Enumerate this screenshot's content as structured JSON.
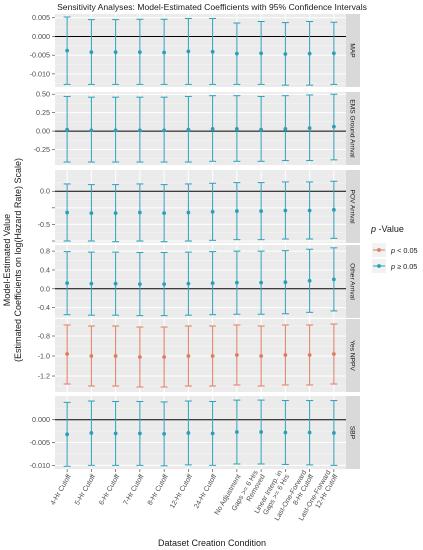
{
  "chart_data": {
    "type": "scatter",
    "title": "Sensitivity Analyses: Model-Estimated Coefficients with 95% Confidence Intervals",
    "xlabel": "Dataset Creation Condition",
    "ylabel_line1": "Model-Estimated Value",
    "ylabel_line2": "(Estimated Coefficients on log(Hazard Rate) Scale)",
    "categories": [
      [
        "4-Hr Cutoff"
      ],
      [
        "5-Hr Cutoff"
      ],
      [
        "6-Hr Cutoff"
      ],
      [
        "7-Hr Cutoff"
      ],
      [
        "8-Hr Cutoff"
      ],
      [
        "12-Hr Cutoff"
      ],
      [
        "24-Hr Cutoff"
      ],
      [
        "No Adjustment"
      ],
      [
        "Gaps >= 6 Hrs",
        "Removed"
      ],
      [
        "Linear Interp. in",
        "Gaps >= 6 Hrs"
      ],
      [
        "Last-One-Forward",
        "8-Hr Cutoff"
      ],
      [
        "Last-One-Forward",
        "12-Hr Cutoff"
      ]
    ],
    "legend": {
      "title_italic": "p",
      "title_rest": " -Value",
      "placement": "right",
      "entries": [
        {
          "italic": "p",
          "rest": " < 0.05",
          "color": "#e07b61"
        },
        {
          "italic": "p",
          "rest": " ≥ 0.05",
          "color": "#2aa0b8"
        }
      ]
    },
    "colors": {
      "significant": "#e07b61",
      "nonsignificant": "#2aa0b8",
      "panel_bg": "#ebebeb",
      "strip_bg": "#d9d9d9"
    },
    "panels": [
      {
        "strip": "MAP",
        "ylim": [
          -0.0135,
          0.006
        ],
        "ticks": [
          0.005,
          0.0,
          -0.005,
          -0.01
        ],
        "tick_labels": [
          "0.005",
          "0.000",
          "-0.005",
          "-0.010"
        ],
        "significant": false,
        "estimate": [
          -0.0038,
          -0.0042,
          -0.0042,
          -0.0042,
          -0.0043,
          -0.004,
          -0.0041,
          -0.0046,
          -0.0045,
          -0.0047,
          -0.0046,
          -0.0045
        ],
        "lower": [
          -0.0128,
          -0.0128,
          -0.0128,
          -0.0128,
          -0.0128,
          -0.0128,
          -0.0128,
          -0.0128,
          -0.0128,
          -0.013,
          -0.013,
          -0.0128
        ],
        "upper": [
          0.0052,
          0.0045,
          0.0045,
          0.0046,
          0.0046,
          0.0048,
          0.0048,
          0.0036,
          0.004,
          0.0037,
          0.004,
          0.0038
        ]
      },
      {
        "strip": "EMS Ground Arrival",
        "ylim": [
          -0.46,
          0.53
        ],
        "ticks": [
          0.5,
          0.25,
          0.0,
          -0.25
        ],
        "tick_labels": [
          "0.50",
          "0.25",
          "0.00",
          "-0.25"
        ],
        "significant": false,
        "estimate": [
          0.02,
          0.01,
          0.01,
          0.01,
          0.01,
          0.02,
          0.03,
          0.03,
          0.02,
          0.03,
          0.04,
          0.06
        ],
        "lower": [
          -0.42,
          -0.42,
          -0.42,
          -0.42,
          -0.42,
          -0.42,
          -0.41,
          -0.41,
          -0.41,
          -0.4,
          -0.4,
          -0.39
        ],
        "upper": [
          0.47,
          0.46,
          0.46,
          0.46,
          0.46,
          0.47,
          0.48,
          0.48,
          0.47,
          0.48,
          0.49,
          0.5
        ]
      },
      {
        "strip": "POV Arrival",
        "ylim": [
          -0.78,
          0.32
        ],
        "ticks": [
          0.0,
          -0.25,
          -0.5,
          -0.75
        ],
        "tick_labels": [
          "0.0",
          "",
          "-0.5",
          ""
        ],
        "significant": false,
        "estimate": [
          -0.32,
          -0.33,
          -0.33,
          -0.32,
          -0.33,
          -0.32,
          -0.31,
          -0.3,
          -0.3,
          -0.29,
          -0.29,
          -0.28
        ],
        "lower": [
          -0.75,
          -0.75,
          -0.76,
          -0.75,
          -0.76,
          -0.75,
          -0.74,
          -0.73,
          -0.73,
          -0.72,
          -0.72,
          -0.71
        ],
        "upper": [
          0.11,
          0.1,
          0.1,
          0.11,
          0.1,
          0.11,
          0.12,
          0.13,
          0.13,
          0.14,
          0.14,
          0.15
        ]
      },
      {
        "strip": "Other Arrival",
        "ylim": [
          -0.62,
          0.93
        ],
        "ticks": [
          0.8,
          0.4,
          0.0,
          -0.4
        ],
        "tick_labels": [
          "0.8",
          "0.4",
          "0.0",
          "-0.4"
        ],
        "significant": false,
        "estimate": [
          0.12,
          0.11,
          0.11,
          0.1,
          0.1,
          0.11,
          0.12,
          0.13,
          0.13,
          0.14,
          0.17,
          0.2
        ],
        "lower": [
          -0.55,
          -0.56,
          -0.56,
          -0.57,
          -0.57,
          -0.56,
          -0.55,
          -0.54,
          -0.54,
          -0.53,
          -0.5,
          -0.47
        ],
        "upper": [
          0.79,
          0.78,
          0.78,
          0.77,
          0.77,
          0.78,
          0.79,
          0.8,
          0.8,
          0.81,
          0.84,
          0.87
        ]
      },
      {
        "strip": "Yes NPPV",
        "ylim": [
          -1.36,
          -0.63
        ],
        "ticks": [
          -0.8,
          -1.0,
          -1.2
        ],
        "tick_labels": [
          "-0.8",
          "-1.0",
          "-1.2"
        ],
        "significant": true,
        "estimate": [
          -0.98,
          -1.0,
          -1.0,
          -1.01,
          -1.01,
          -1.0,
          -1.0,
          -0.99,
          -1.0,
          -0.99,
          -0.99,
          -0.98
        ],
        "lower": [
          -1.28,
          -1.3,
          -1.3,
          -1.31,
          -1.31,
          -1.3,
          -1.3,
          -1.29,
          -1.3,
          -1.29,
          -1.29,
          -1.28
        ],
        "upper": [
          -0.69,
          -0.7,
          -0.7,
          -0.71,
          -0.71,
          -0.7,
          -0.7,
          -0.69,
          -0.7,
          -0.69,
          -0.69,
          -0.68
        ]
      },
      {
        "strip": "SBP",
        "ylim": [
          -0.0108,
          0.0052
        ],
        "ticks": [
          0.0,
          -0.005,
          -0.01
        ],
        "tick_labels": [
          "0.000",
          "-0.005",
          "-0.010"
        ],
        "significant": false,
        "estimate": [
          -0.0032,
          -0.0029,
          -0.003,
          -0.003,
          -0.0031,
          -0.0029,
          -0.003,
          -0.0027,
          -0.0027,
          -0.0028,
          -0.0028,
          -0.0029
        ],
        "lower": [
          -0.0102,
          -0.01,
          -0.01,
          -0.01,
          -0.0101,
          -0.0099,
          -0.01,
          -0.0097,
          -0.0097,
          -0.0098,
          -0.0099,
          -0.01
        ],
        "upper": [
          0.0038,
          0.0041,
          0.004,
          0.004,
          0.0039,
          0.0041,
          0.004,
          0.0043,
          0.0043,
          0.0042,
          0.0042,
          0.0042
        ]
      }
    ]
  }
}
